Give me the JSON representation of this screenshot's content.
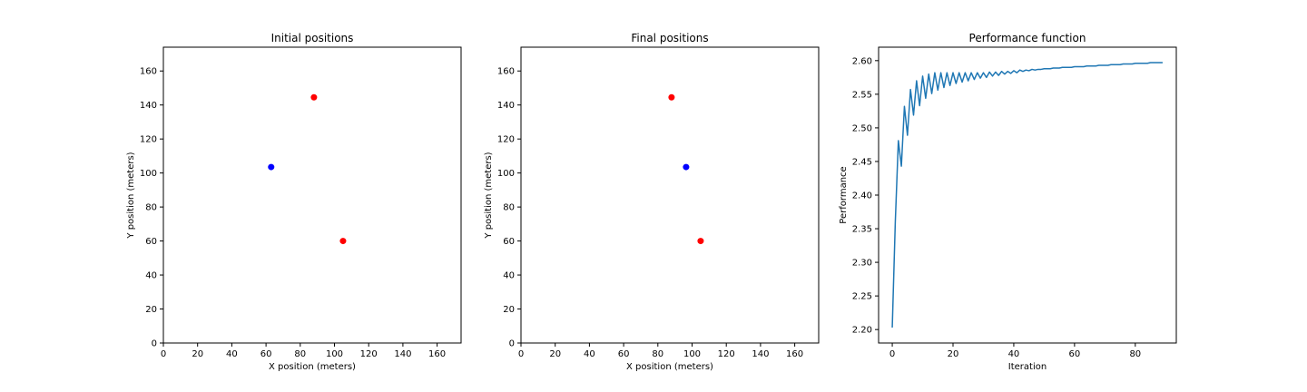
{
  "chart_data": [
    {
      "type": "scatter",
      "title": "Initial positions",
      "xlabel": "X position (meters)",
      "ylabel": "Y position (meters)",
      "xlim": [
        0,
        174
      ],
      "ylim": [
        0,
        174
      ],
      "xticks": [
        0,
        20,
        40,
        60,
        80,
        100,
        120,
        140,
        160
      ],
      "yticks": [
        0,
        20,
        40,
        60,
        80,
        100,
        120,
        140,
        160
      ],
      "grid": false,
      "series": [
        {
          "color": "#0000ff",
          "points": [
            {
              "x": 63,
              "y": 103.5
            }
          ]
        },
        {
          "color": "#ff0000",
          "points": [
            {
              "x": 88,
              "y": 144.5
            },
            {
              "x": 105,
              "y": 60
            }
          ]
        }
      ]
    },
    {
      "type": "scatter",
      "title": "Final positions",
      "xlabel": "X position (meters)",
      "ylabel": "Y position (meters)",
      "xlim": [
        0,
        174
      ],
      "ylim": [
        0,
        174
      ],
      "xticks": [
        0,
        20,
        40,
        60,
        80,
        100,
        120,
        140,
        160
      ],
      "yticks": [
        0,
        20,
        40,
        60,
        80,
        100,
        120,
        140,
        160
      ],
      "grid": false,
      "series": [
        {
          "color": "#0000ff",
          "points": [
            {
              "x": 96.5,
              "y": 103.5
            }
          ]
        },
        {
          "color": "#ff0000",
          "points": [
            {
              "x": 88,
              "y": 144.5
            },
            {
              "x": 105,
              "y": 60
            }
          ]
        }
      ]
    },
    {
      "type": "line",
      "title": "Performance function",
      "xlabel": "Iteration",
      "ylabel": "Performance",
      "xlim": [
        -4.5,
        93.5
      ],
      "ylim": [
        2.18,
        2.62
      ],
      "xticks": [
        0,
        20,
        40,
        60,
        80
      ],
      "yticks": [
        2.2,
        2.25,
        2.3,
        2.35,
        2.4,
        2.45,
        2.5,
        2.55,
        2.6
      ],
      "ytick_labels": [
        "2.20",
        "2.25",
        "2.30",
        "2.35",
        "2.40",
        "2.45",
        "2.50",
        "2.55",
        "2.60"
      ],
      "grid": false,
      "series": [
        {
          "color": "#1f77b4",
          "x": [
            0,
            1,
            2,
            3,
            4,
            5,
            6,
            7,
            8,
            9,
            10,
            11,
            12,
            13,
            14,
            15,
            16,
            17,
            18,
            19,
            20,
            21,
            22,
            23,
            24,
            25,
            26,
            27,
            28,
            29,
            30,
            31,
            32,
            33,
            34,
            35,
            36,
            37,
            38,
            39,
            40,
            41,
            42,
            43,
            44,
            45,
            46,
            47,
            48,
            49,
            50,
            51,
            52,
            53,
            54,
            55,
            56,
            57,
            58,
            59,
            60,
            61,
            62,
            63,
            64,
            65,
            66,
            67,
            68,
            69,
            70,
            71,
            72,
            73,
            74,
            75,
            76,
            77,
            78,
            79,
            80,
            81,
            82,
            83,
            84,
            85,
            86,
            87,
            88,
            89
          ],
          "values": [
            2.203,
            2.36,
            2.481,
            2.443,
            2.532,
            2.489,
            2.557,
            2.519,
            2.57,
            2.533,
            2.577,
            2.544,
            2.58,
            2.551,
            2.582,
            2.556,
            2.582,
            2.56,
            2.582,
            2.563,
            2.582,
            2.566,
            2.582,
            2.568,
            2.582,
            2.57,
            2.582,
            2.572,
            2.582,
            2.574,
            2.582,
            2.575,
            2.583,
            2.577,
            2.583,
            2.578,
            2.584,
            2.58,
            2.584,
            2.581,
            2.585,
            2.582,
            2.586,
            2.584,
            2.586,
            2.585,
            2.587,
            2.586,
            2.587,
            2.587,
            2.588,
            2.588,
            2.588,
            2.589,
            2.589,
            2.589,
            2.59,
            2.59,
            2.59,
            2.59,
            2.591,
            2.591,
            2.591,
            2.591,
            2.592,
            2.592,
            2.592,
            2.592,
            2.593,
            2.593,
            2.593,
            2.593,
            2.594,
            2.594,
            2.594,
            2.594,
            2.595,
            2.595,
            2.595,
            2.595,
            2.596,
            2.596,
            2.596,
            2.596,
            2.596,
            2.597,
            2.597,
            2.597,
            2.597,
            2.597
          ]
        }
      ]
    }
  ]
}
